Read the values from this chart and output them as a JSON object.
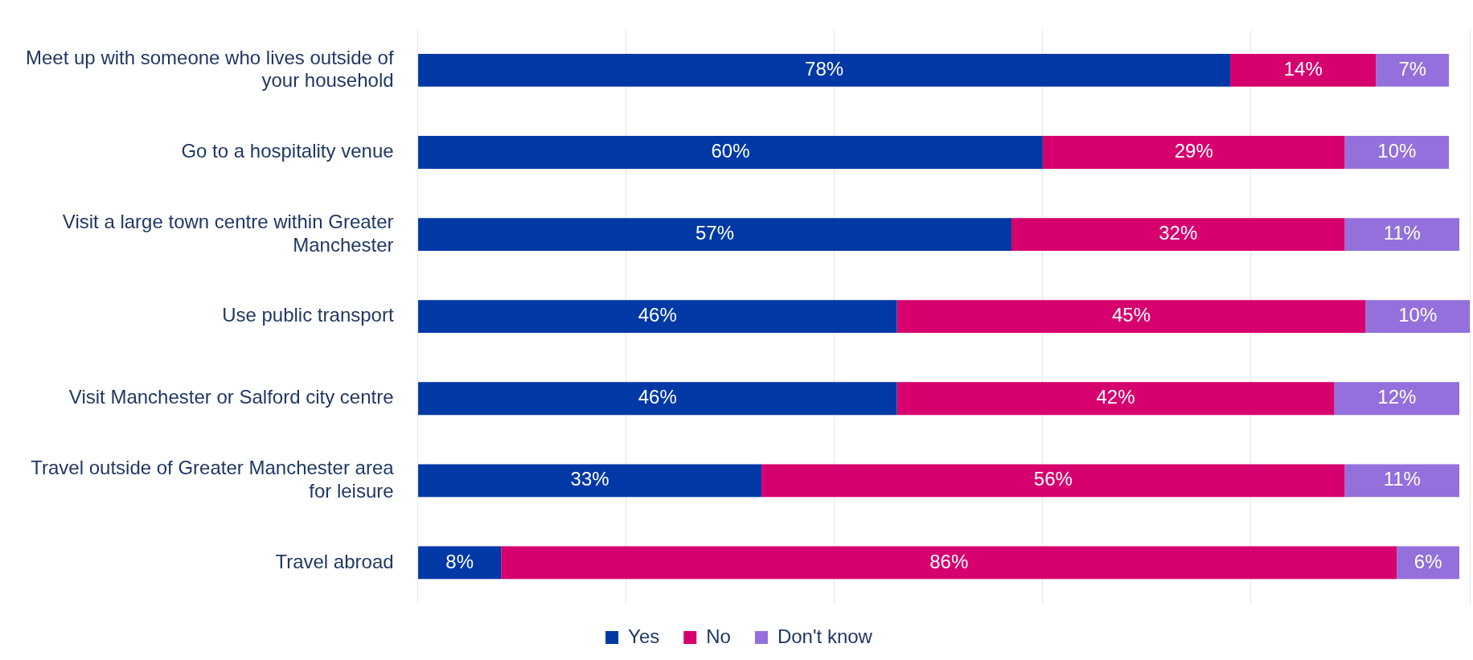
{
  "chart_data": {
    "type": "bar",
    "orientation": "horizontal",
    "stacked": true,
    "categories": [
      "Meet up with someone who lives outside of your household",
      "Go to a hospitality venue",
      "Visit a large town centre within Greater Manchester",
      "Use public transport",
      "Visit Manchester or Salford city centre",
      "Travel outside of Greater Manchester area for leisure",
      "Travel abroad"
    ],
    "series": [
      {
        "name": "Yes",
        "color": "#0039a6",
        "values": [
          78,
          60,
          57,
          46,
          46,
          33,
          8
        ],
        "value_labels": [
          "78%",
          "60%",
          "57%",
          "46%",
          "46%",
          "33%",
          "8%"
        ]
      },
      {
        "name": "No",
        "color": "#d6006f",
        "values": [
          14,
          29,
          32,
          45,
          42,
          56,
          86
        ],
        "value_labels": [
          "14%",
          "29%",
          "32%",
          "45%",
          "42%",
          "56%",
          "86%"
        ]
      },
      {
        "name": "Don't know",
        "color": "#9370db",
        "values": [
          7,
          10,
          11,
          10,
          12,
          11,
          6
        ],
        "value_labels": [
          "7%",
          "10%",
          "11%",
          "10%",
          "12%",
          "11%",
          "6%"
        ]
      }
    ],
    "grid": "x",
    "legend": "bottom",
    "tick_labels": "y"
  }
}
